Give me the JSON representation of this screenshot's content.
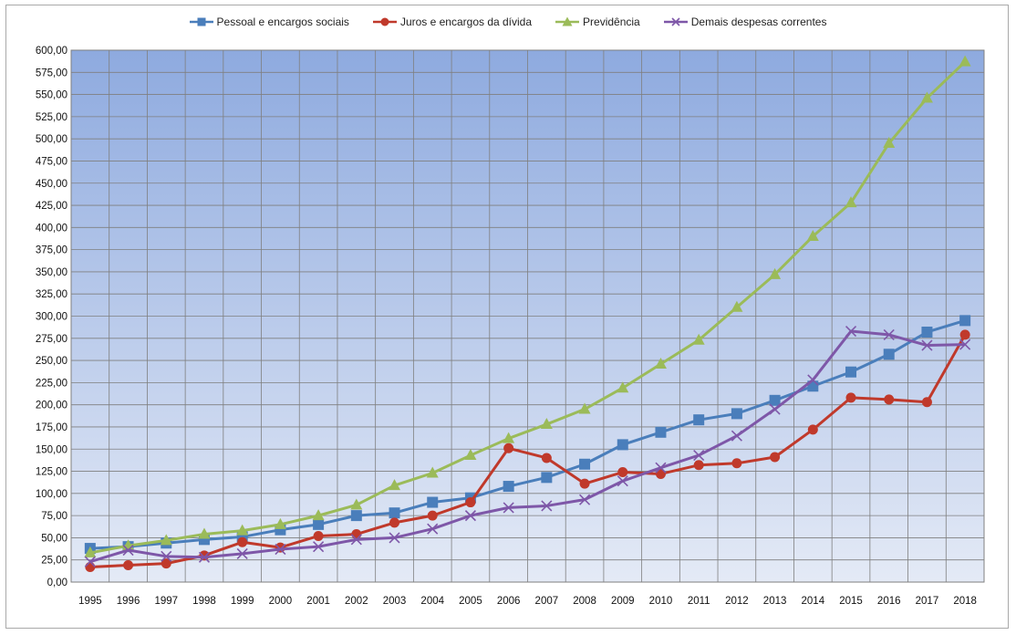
{
  "chart_data": {
    "type": "line",
    "title": "",
    "xlabel": "",
    "ylabel": "",
    "x": [
      "1995",
      "1996",
      "1997",
      "1998",
      "1999",
      "2000",
      "2001",
      "2002",
      "2003",
      "2004",
      "2005",
      "2006",
      "2007",
      "2008",
      "2009",
      "2010",
      "2011",
      "2012",
      "2013",
      "2014",
      "2015",
      "2016",
      "2017",
      "2018"
    ],
    "ylim": [
      0,
      600
    ],
    "ytick_step": 25,
    "ytick_labels": [
      "0,00",
      "25,00",
      "50,00",
      "75,00",
      "100,00",
      "125,00",
      "150,00",
      "175,00",
      "200,00",
      "225,00",
      "250,00",
      "275,00",
      "300,00",
      "325,00",
      "350,00",
      "375,00",
      "400,00",
      "425,00",
      "450,00",
      "475,00",
      "500,00",
      "525,00",
      "550,00",
      "575,00",
      "600,00"
    ],
    "grid": true,
    "legend_position": "top-center",
    "background_gradient": [
      "#8eaadf",
      "#e4eaf6"
    ],
    "series": [
      {
        "name": "Pessoal e encargos sociais",
        "marker": "square",
        "color": "#4a7ebb",
        "values": [
          38,
          40,
          44,
          48,
          51,
          59,
          65,
          75,
          78,
          90,
          95,
          108,
          118,
          133,
          155,
          169,
          183,
          190,
          205,
          221,
          237,
          257,
          282,
          295
        ]
      },
      {
        "name": "Juros e encargos da dívida",
        "marker": "circle",
        "color": "#c0392b",
        "values": [
          17,
          19,
          21,
          30,
          45,
          39,
          52,
          54,
          67,
          75,
          90,
          151,
          140,
          111,
          124,
          122,
          132,
          134,
          141,
          172,
          208,
          206,
          203,
          279
        ]
      },
      {
        "name": "Previdência",
        "marker": "triangle",
        "color": "#9bbb59",
        "values": [
          33,
          41,
          47,
          54,
          58,
          65,
          75,
          87,
          109,
          123,
          143,
          162,
          178,
          195,
          219,
          246,
          273,
          310,
          347,
          390,
          428,
          495,
          546,
          587
        ]
      },
      {
        "name": "Demais despesas correntes",
        "marker": "x",
        "color": "#7e57a8",
        "values": [
          23,
          36,
          29,
          28,
          32,
          37,
          40,
          48,
          50,
          60,
          75,
          84,
          86,
          93,
          114,
          129,
          143,
          165,
          195,
          228,
          283,
          279,
          267,
          268
        ]
      }
    ]
  }
}
